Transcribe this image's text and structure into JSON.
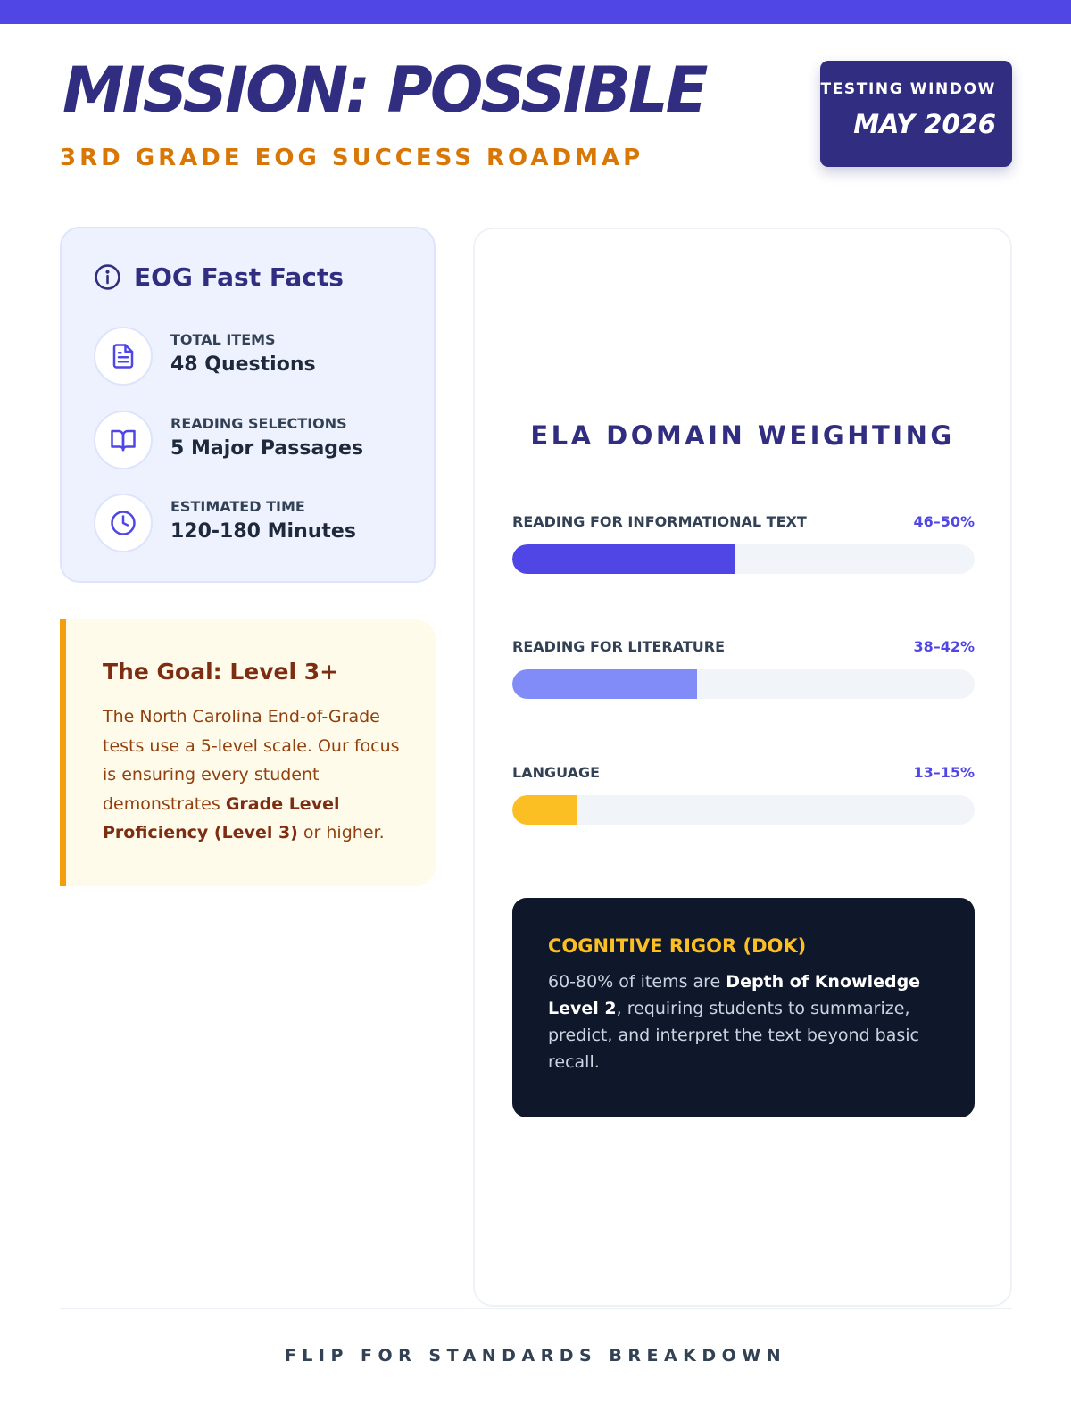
{
  "header": {
    "title": "MISSION: POSSIBLE",
    "subtitle": "3RD GRADE EOG SUCCESS ROADMAP",
    "window_label": "TESTING WINDOW",
    "window_date": "MAY 2026"
  },
  "facts": {
    "heading": "EOG Fast Facts",
    "items": [
      {
        "label": "TOTAL ITEMS",
        "value": "48 Questions",
        "icon": "document-icon"
      },
      {
        "label": "READING SELECTIONS",
        "value": "5 Major Passages",
        "icon": "book-icon"
      },
      {
        "label": "ESTIMATED TIME",
        "value": "120-180 Minutes",
        "icon": "clock-icon"
      }
    ]
  },
  "goal": {
    "title": "The Goal: Level 3+",
    "text_before": "The North Carolina End-of-Grade tests use a 5-level scale. Our focus is ensuring every student demonstrates ",
    "text_bold": "Grade Level Proficiency (Level 3)",
    "text_after": " or higher."
  },
  "domains": {
    "title": "ELA DOMAIN WEIGHTING",
    "items": [
      {
        "label": "READING FOR INFORMATIONAL TEXT",
        "range": "46–50%",
        "fill": 0.48,
        "color": "#4f46e5"
      },
      {
        "label": "READING FOR LITERATURE",
        "range": "38–42%",
        "fill": 0.4,
        "color": "#818cf8"
      },
      {
        "label": "LANGUAGE",
        "range": "13–15%",
        "fill": 0.14,
        "color": "#fbbf24"
      }
    ]
  },
  "dok": {
    "title": "COGNITIVE RIGOR (DOK)",
    "text_before": "60-80% of items are ",
    "text_bold": "Depth of Knowledge Level 2",
    "text_after": ", requiring students to summarize, predict, and interpret the text beyond basic recall."
  },
  "footer": {
    "text": "FLIP FOR STANDARDS BREAKDOWN"
  },
  "colors": {
    "accent": "#4f46e5",
    "navy": "#312e81",
    "orange": "#d97706"
  }
}
